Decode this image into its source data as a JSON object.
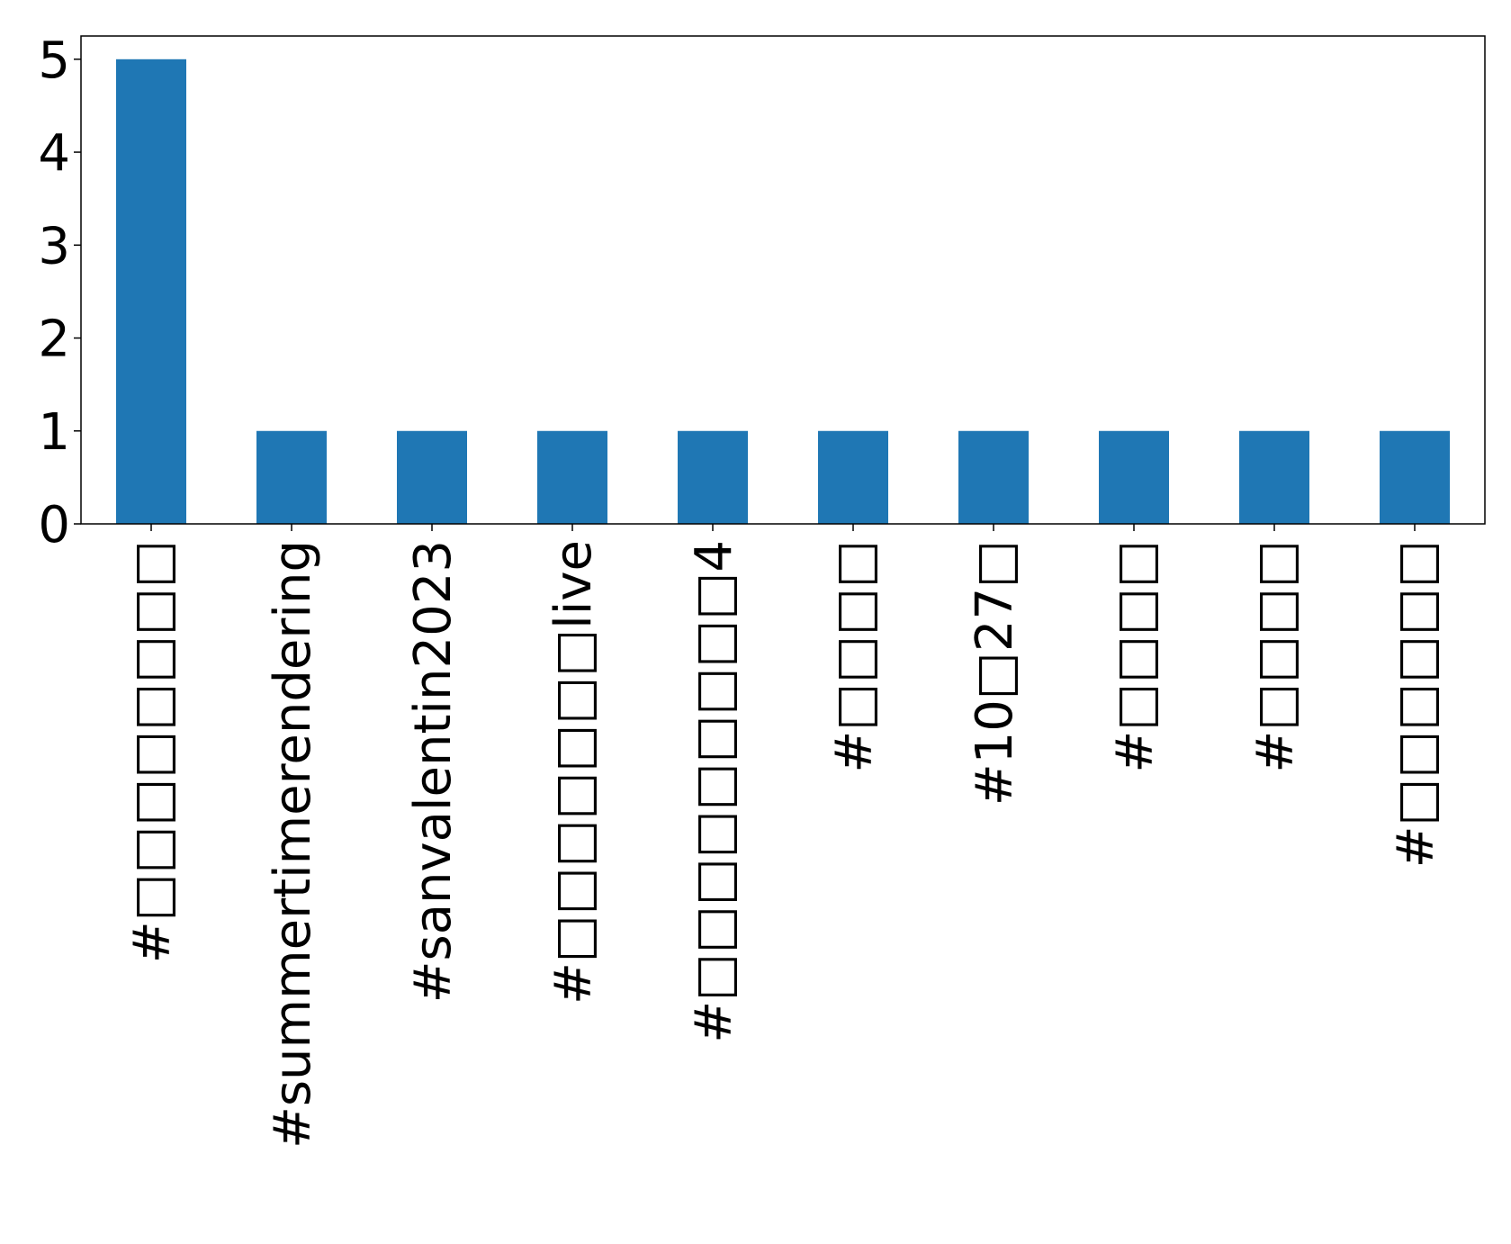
{
  "chart_data": {
    "type": "bar",
    "categories": [
      "#□□□□□□□□",
      "#summertimerendering",
      "#sanvalentin2023",
      "#□□□□□□□live",
      "#□□□□□□□□□4",
      "#□□□□",
      "#10□27□",
      "#□□□□",
      "#□□□□",
      "#□□□□□□"
    ],
    "values": [
      5,
      1,
      1,
      1,
      1,
      1,
      1,
      1,
      1,
      1
    ],
    "y_ticks": [
      0,
      1,
      2,
      3,
      4,
      5
    ],
    "ylim": [
      0,
      5.25
    ],
    "title": "",
    "xlabel": "",
    "ylabel": "",
    "grid": false,
    "bar_color": "#1f77b4"
  }
}
